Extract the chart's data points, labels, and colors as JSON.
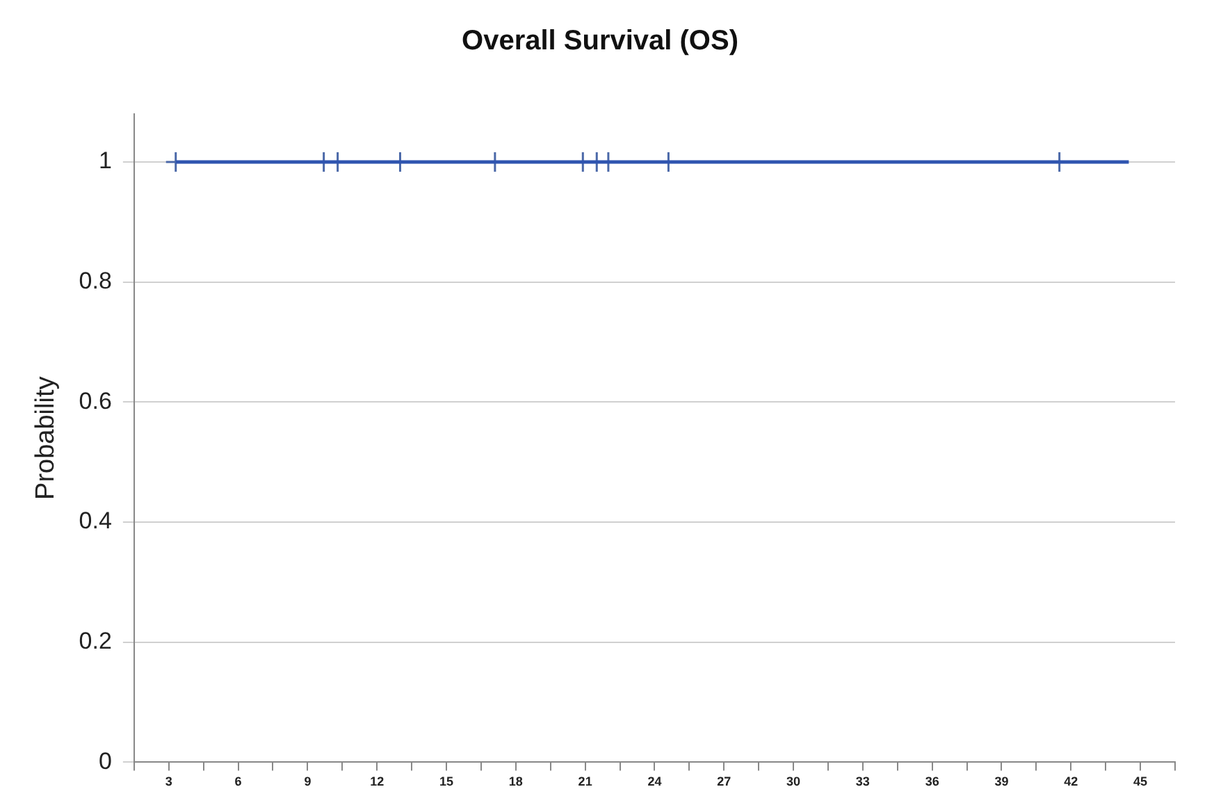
{
  "chart_data": {
    "type": "line",
    "title": "Overall Survival (OS)",
    "ylabel": "Probability",
    "xlim": [
      1.5,
      46.5
    ],
    "xticks": [
      {
        "value": 1.5,
        "label": null
      },
      3,
      {
        "value": 4.5,
        "label": null
      },
      6,
      {
        "value": 7.5,
        "label": null
      },
      9,
      {
        "value": 10.5,
        "label": null
      },
      12,
      {
        "value": 13.5,
        "label": null
      },
      15,
      {
        "value": 16.5,
        "label": null
      },
      18,
      {
        "value": 19.5,
        "label": null
      },
      21,
      {
        "value": 22.5,
        "label": null
      },
      24,
      {
        "value": 25.5,
        "label": null
      },
      27,
      {
        "value": 28.5,
        "label": null
      },
      30,
      {
        "value": 31.5,
        "label": null
      },
      33,
      {
        "value": 34.5,
        "label": null
      },
      36,
      {
        "value": 37.5,
        "label": null
      },
      39,
      {
        "value": 40.5,
        "label": null
      },
      42,
      {
        "value": 43.5,
        "label": null
      },
      45,
      {
        "value": 46.5,
        "label": null
      }
    ],
    "ylim": [
      0,
      1.08
    ],
    "yticks": [
      0,
      0.2,
      0.4,
      0.6,
      0.8,
      1
    ],
    "grid": "y",
    "legend": false,
    "series": [
      {
        "color": "#2f55b0",
        "marker": "none",
        "x": [
          3.3,
          44.5
        ],
        "values": [
          1,
          1
        ]
      },
      {
        "type": "scatter",
        "color": "#4a68a8",
        "marker": "cross",
        "x": [
          3.3,
          9.7,
          10.3,
          13.0,
          17.1,
          20.9,
          21.5,
          22.0,
          24.6,
          41.5
        ],
        "values": [
          1,
          1,
          1,
          1,
          1,
          1,
          1,
          1,
          1,
          1
        ]
      }
    ]
  }
}
